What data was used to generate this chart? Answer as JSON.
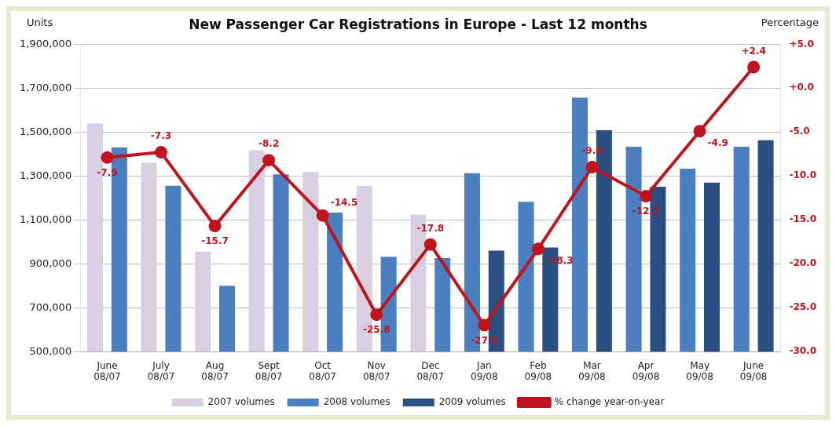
{
  "chart_data": {
    "type": "bar",
    "title": "New Passenger Car Registrations in Europe - Last 12 months",
    "ylabel": "Units",
    "y2label": "Percentage",
    "categories": [
      "June 08/07",
      "July 08/07",
      "Aug 08/07",
      "Sept 08/07",
      "Oct 08/07",
      "Nov 08/07",
      "Dec 08/07",
      "Jan 09/08",
      "Feb 09/08",
      "Mar 09/08",
      "Apr 09/08",
      "May 09/08",
      "June 09/08"
    ],
    "series": [
      {
        "name": "2007 volumes",
        "color": "#d8d0e2",
        "values": [
          1540000,
          1360000,
          955000,
          1417000,
          1318000,
          1254000,
          1123000,
          null,
          null,
          null,
          null,
          null,
          null
        ]
      },
      {
        "name": "2008 volumes",
        "color": "#4a80c2",
        "values": [
          1430000,
          1256000,
          800000,
          1307000,
          1133000,
          932000,
          926000,
          1313000,
          1182000,
          1657000,
          1433000,
          1333000,
          1433000
        ]
      },
      {
        "name": "2009 volumes",
        "color": "#2b4f80",
        "values": [
          null,
          null,
          null,
          null,
          null,
          null,
          null,
          960000,
          974000,
          1508000,
          1251000,
          1270000,
          1463000
        ]
      },
      {
        "name": "% change year-on-year",
        "type": "line",
        "axis": "y2",
        "color": "#c0141c",
        "marker": "circle",
        "values": [
          -7.9,
          -7.3,
          -15.7,
          -8.2,
          -14.5,
          -25.8,
          -17.8,
          -27.0,
          -18.3,
          -9.0,
          -12.3,
          -4.9,
          2.4
        ],
        "value_labels": [
          "-7.9",
          "-7.3",
          "-15.7",
          "-8.2",
          "-14.5",
          "-25.8",
          "-17.8",
          "-27.0",
          "-18.3",
          "-9.0",
          "-12.3",
          "-4.9",
          "+2.4"
        ]
      }
    ],
    "ylim": [
      500000,
      1900000
    ],
    "yticks": [
      {
        "value": 500000,
        "label": "500,000"
      },
      {
        "value": 700000,
        "label": "700,000"
      },
      {
        "value": 900000,
        "label": "900,000"
      },
      {
        "value": 1100000,
        "label": "1,100,000"
      },
      {
        "value": 1300000,
        "label": "1,300,000"
      },
      {
        "value": 1500000,
        "label": "1,500,000"
      },
      {
        "value": 1700000,
        "label": "1,700,000"
      },
      {
        "value": 1900000,
        "label": "1,900,000"
      }
    ],
    "y2lim": [
      -30,
      5
    ],
    "y2ticks": [
      {
        "value": 5,
        "label": "+5.0"
      },
      {
        "value": 0,
        "label": "+0.0"
      },
      {
        "value": -5,
        "label": "-5.0"
      },
      {
        "value": -10,
        "label": "-10.0"
      },
      {
        "value": -15,
        "label": "-15.0"
      },
      {
        "value": -20,
        "label": "-20.0"
      },
      {
        "value": -25,
        "label": "-25.0"
      },
      {
        "value": -30,
        "label": "-30.0"
      }
    ],
    "grid": "y",
    "legend": "bottom"
  }
}
